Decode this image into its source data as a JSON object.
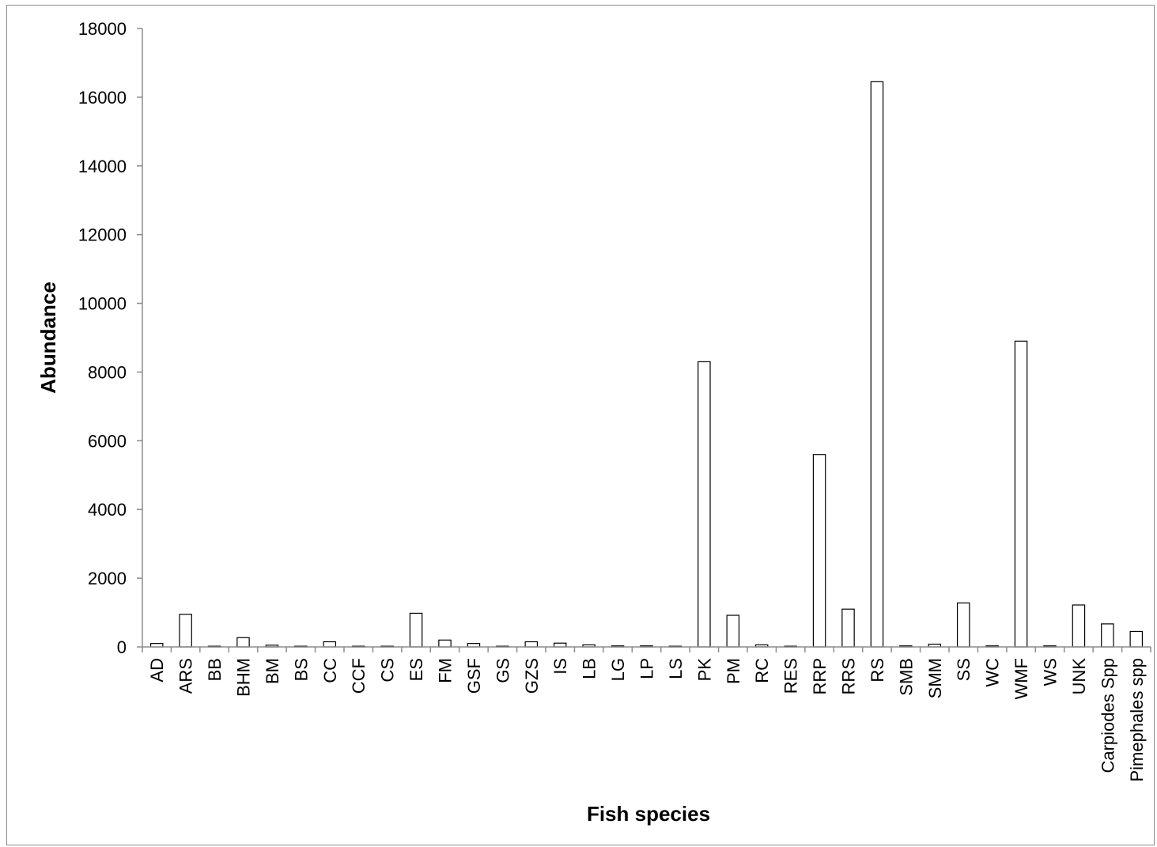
{
  "chart_data": {
    "type": "bar",
    "title": "",
    "xlabel": "Fish species",
    "ylabel": "Abundance",
    "ylim": [
      0,
      18000
    ],
    "yticks": [
      0,
      2000,
      4000,
      6000,
      8000,
      10000,
      12000,
      14000,
      16000,
      18000
    ],
    "grid": false,
    "legend": "none",
    "categories": [
      "AD",
      "ARS",
      "BB",
      "BHM",
      "BM",
      "BS",
      "CC",
      "CCF",
      "CS",
      "ES",
      "FM",
      "GSF",
      "GS",
      "GZS",
      "IS",
      "LB",
      "LG",
      "LP",
      "LS",
      "PK",
      "PM",
      "RC",
      "RES",
      "RRP",
      "RRS",
      "RS",
      "SMB",
      "SMM",
      "SS",
      "WC",
      "WMF",
      "WS",
      "UNK",
      "Carpiodes Spp",
      "Pimephales spp"
    ],
    "values": [
      100,
      950,
      20,
      270,
      50,
      20,
      150,
      20,
      20,
      980,
      200,
      100,
      20,
      150,
      110,
      60,
      30,
      30,
      20,
      8300,
      920,
      60,
      20,
      5600,
      1100,
      16450,
      30,
      80,
      1280,
      30,
      8900,
      30,
      1220,
      670,
      450
    ],
    "colors": {
      "bar_fill": "#ffffff",
      "bar_stroke": "#000000",
      "axis": "#8c8c8c",
      "frame": "#8c8c8c"
    }
  }
}
